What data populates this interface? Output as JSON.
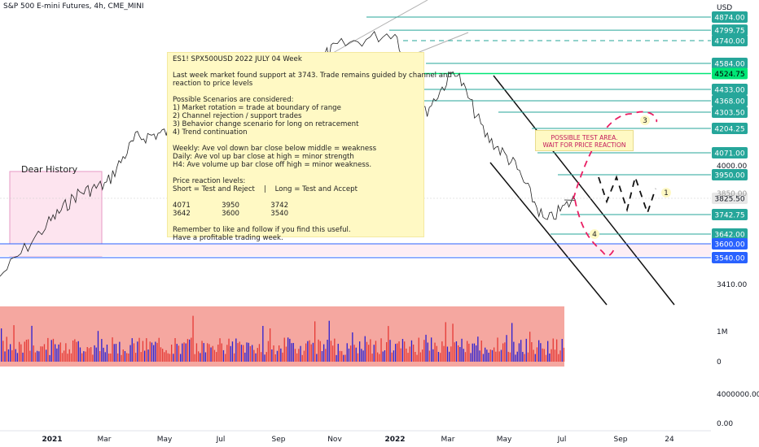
{
  "header": {
    "title": "S&P 500 E-mini Futures, 4h, CME_MINI",
    "currency": "USD"
  },
  "note": {
    "lines": [
      "ES1! SPX500USD 2022 JULY 04 Week",
      "",
      "Last week market found support at 3743. Trade remains guided by channel and",
      "reaction to price levels",
      "",
      "Possible Scenarios are considered:",
      "1) Market rotation = trade at boundary of range",
      "2) Channel rejection / support trades",
      "3) Behavior change scenario for long on retracement",
      "4) Trend continuation",
      "",
      "Weekly: Ave vol down bar close below middle = weakness",
      "Daily: Ave vol up bar close at high = minor strength",
      "H4: Ave volume up bar close off high = minor weakness.",
      "",
      "Price reaction levels:",
      "Short = Test and Reject    |    Long = Test and Accept",
      "",
      "4071              3950              3742",
      "3642              3600              3540",
      "",
      "Remember to like and follow if you find this useful.",
      "Have a profitable trading week."
    ]
  },
  "annotations": {
    "dear_history": "Dear History",
    "test_area": [
      "POSSIBLE TEST AREA.",
      "WAIT FOR PRICE REACTION"
    ],
    "scenario_labels": [
      "1",
      "3",
      "4"
    ]
  },
  "colors": {
    "level_line": "#26a69a",
    "highlight_level": "#00e676",
    "blue_level": "#2962ff",
    "volume_bg": "#f28b82",
    "volume_bar": "#2a1fd1",
    "volume_bar_red": "#e53935",
    "price_line": "#222222",
    "scenario_dash": "#e91e63",
    "pink_box": "#fde4ef"
  },
  "chart_data": {
    "type": "line",
    "title": "S&P 500 E-mini Futures, 4h, CME_MINI",
    "x_tick_labels": [
      "2021",
      "Mar",
      "May",
      "Jul",
      "Sep",
      "Nov",
      "2022",
      "Mar",
      "May",
      "Jul",
      "Sep",
      "24"
    ],
    "y_axis_labels": [
      "4000.00",
      "3850.00",
      "3410.00"
    ],
    "price_levels": [
      {
        "label": "4874.00",
        "value": 4874,
        "style": "teal"
      },
      {
        "label": "4799.75",
        "value": 4799.75,
        "style": "teal"
      },
      {
        "label": "4740.00",
        "value": 4740,
        "style": "teal-dashed"
      },
      {
        "label": "4584.00",
        "value": 4584,
        "style": "teal"
      },
      {
        "label": "4524.75",
        "value": 4524.75,
        "style": "green"
      },
      {
        "label": "4433.00",
        "value": 4433,
        "style": "teal"
      },
      {
        "label": "4368.00",
        "value": 4368,
        "style": "teal"
      },
      {
        "label": "4303.50",
        "value": 4303.5,
        "style": "teal"
      },
      {
        "label": "4204.25",
        "value": 4204.25,
        "style": "teal"
      },
      {
        "label": "4071.00",
        "value": 4071,
        "style": "teal"
      },
      {
        "label": "3950.00",
        "value": 3950,
        "style": "teal"
      },
      {
        "label": "3825.50",
        "value": 3825.5,
        "style": "current"
      },
      {
        "label": "3742.75",
        "value": 3742.75,
        "style": "teal"
      },
      {
        "label": "3642.00",
        "value": 3642,
        "style": "teal"
      },
      {
        "label": "3600.00",
        "value": 3600,
        "style": "blue"
      },
      {
        "label": "3540.00",
        "value": 3540,
        "style": "blue"
      }
    ],
    "price_path": [
      {
        "x": "2021-01",
        "y": 3700
      },
      {
        "x": "2021-02",
        "y": 3850
      },
      {
        "x": "2021-03",
        "y": 3900
      },
      {
        "x": "2021-04",
        "y": 4150
      },
      {
        "x": "2021-05",
        "y": 4180
      },
      {
        "x": "2021-06",
        "y": 4250
      },
      {
        "x": "2021-07",
        "y": 4380
      },
      {
        "x": "2021-08",
        "y": 4480
      },
      {
        "x": "2021-09",
        "y": 4450
      },
      {
        "x": "2021-10",
        "y": 4560
      },
      {
        "x": "2021-11",
        "y": 4700
      },
      {
        "x": "2022-01",
        "y": 4790
      },
      {
        "x": "2022-02",
        "y": 4300
      },
      {
        "x": "2022-03",
        "y": 4550
      },
      {
        "x": "2022-04",
        "y": 4170
      },
      {
        "x": "2022-05",
        "y": 4000
      },
      {
        "x": "2022-06",
        "y": 3700
      },
      {
        "x": "2022-07",
        "y": 3825
      }
    ],
    "volume_axis_labels": [
      "1M",
      "0",
      "4000000.00",
      "0.00"
    ],
    "grid": false
  }
}
